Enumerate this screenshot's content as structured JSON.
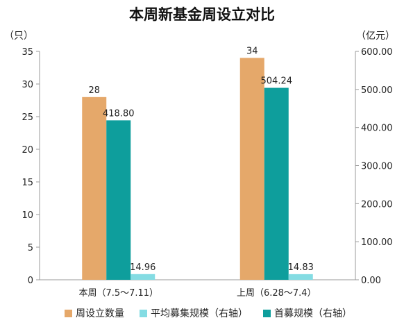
{
  "chart_data": {
    "type": "bar",
    "title": "本周新基金周设立对比",
    "left_unit": "（只）",
    "right_unit": "（亿元）",
    "categories": [
      "本周（7.5～7.11）",
      "上周（6.28～7.4）"
    ],
    "left_axis": {
      "min": 0,
      "max": 35,
      "step": 5,
      "ticks": [
        "0",
        "5",
        "10",
        "15",
        "20",
        "25",
        "30",
        "35"
      ]
    },
    "right_axis": {
      "min": 0,
      "max": 600,
      "step": 100,
      "ticks": [
        "0.00",
        "100.00",
        "200.00",
        "300.00",
        "400.00",
        "500.00",
        "600.00"
      ]
    },
    "grid": false,
    "legend_position": "bottom",
    "series": [
      {
        "name": "周设立数量",
        "axis": "left",
        "color": "#E5A86A",
        "values": [
          28,
          34
        ],
        "labels": [
          "28",
          "34"
        ]
      },
      {
        "name": "首募规模（右轴）",
        "axis": "right",
        "color": "#0E9E9C",
        "values": [
          418.8,
          504.24
        ],
        "labels": [
          "418.80",
          "504.24"
        ]
      },
      {
        "name": "平均募集规模（右轴）",
        "axis": "right",
        "color": "#84DCE3",
        "values": [
          14.96,
          14.83
        ],
        "labels": [
          "14.96",
          "14.83"
        ]
      }
    ],
    "legend_order": [
      0,
      2,
      1
    ]
  }
}
